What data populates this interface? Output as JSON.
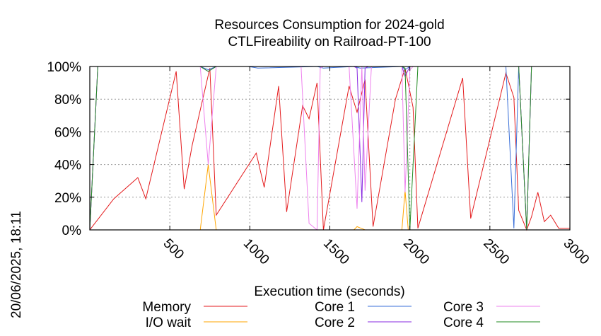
{
  "stamp": "20/06/2025, 18:11",
  "chart_data": {
    "type": "line",
    "title": [
      "Resources Consumption for 2024-gold",
      "CTLFireability on Railroad-PT-100"
    ],
    "xlabel": "Execution time (seconds)",
    "ylabel": "",
    "xlim": [
      0,
      3000
    ],
    "ylim": [
      0,
      100
    ],
    "x_ticks": [
      500,
      1000,
      1500,
      2000,
      2500,
      3000
    ],
    "x_tick_labels": [
      "500",
      "1000",
      "1500",
      "2000",
      "2500",
      "3000"
    ],
    "y_ticks": [
      0,
      20,
      40,
      60,
      80,
      100
    ],
    "y_tick_labels": [
      "0%",
      "20%",
      "40%",
      "60%",
      "80%",
      "100%"
    ],
    "grid": true,
    "legend_position": "bottom",
    "series": [
      {
        "name": "Memory",
        "color": "#e41a1c",
        "points": [
          [
            0,
            0
          ],
          [
            150,
            19
          ],
          [
            300,
            32
          ],
          [
            350,
            19
          ],
          [
            540,
            97
          ],
          [
            590,
            25
          ],
          [
            640,
            52
          ],
          [
            750,
            99
          ],
          [
            790,
            9
          ],
          [
            1040,
            47
          ],
          [
            1090,
            26
          ],
          [
            1180,
            88
          ],
          [
            1230,
            11
          ],
          [
            1330,
            76
          ],
          [
            1370,
            68
          ],
          [
            1420,
            90
          ],
          [
            1460,
            0
          ],
          [
            1620,
            88
          ],
          [
            1670,
            72
          ],
          [
            1720,
            92
          ],
          [
            1770,
            2
          ],
          [
            1910,
            80
          ],
          [
            1970,
            99
          ],
          [
            2020,
            75
          ],
          [
            2050,
            1
          ],
          [
            2330,
            93
          ],
          [
            2380,
            7
          ],
          [
            2600,
            96
          ],
          [
            2650,
            81
          ],
          [
            2680,
            12
          ],
          [
            2730,
            0
          ],
          [
            2760,
            8
          ],
          [
            2800,
            23
          ],
          [
            2840,
            5
          ],
          [
            2880,
            9
          ],
          [
            2930,
            1
          ],
          [
            3000,
            1
          ]
        ]
      },
      {
        "name": "I/O wait",
        "color": "#ffa500",
        "points": [
          [
            690,
            0
          ],
          [
            740,
            40
          ],
          [
            790,
            0
          ],
          [
            1650,
            0
          ],
          [
            1670,
            2
          ],
          [
            1720,
            0
          ],
          [
            1950,
            0
          ],
          [
            1970,
            24
          ],
          [
            1990,
            0
          ]
        ]
      },
      {
        "name": "Core 1",
        "color": "#3a6fd8",
        "points": [
          [
            0,
            0
          ],
          [
            50,
            100
          ],
          [
            690,
            100
          ],
          [
            740,
            98
          ],
          [
            790,
            100
          ],
          [
            990,
            100
          ],
          [
            1050,
            99
          ],
          [
            1420,
            100
          ],
          [
            1460,
            99
          ],
          [
            1650,
            100
          ],
          [
            1690,
            99
          ],
          [
            1950,
            100
          ],
          [
            1970,
            98
          ],
          [
            2000,
            100
          ],
          [
            2600,
            100
          ],
          [
            2650,
            1
          ],
          [
            2680,
            100
          ],
          [
            2730,
            0
          ],
          [
            2760,
            100
          ],
          [
            3000,
            100
          ]
        ]
      },
      {
        "name": "Core 2",
        "color": "#8a2be2",
        "points": [
          [
            0,
            0
          ],
          [
            50,
            100
          ],
          [
            690,
            100
          ],
          [
            740,
            97
          ],
          [
            790,
            100
          ],
          [
            1650,
            100
          ],
          [
            1670,
            99
          ],
          [
            1700,
            17
          ],
          [
            1720,
            99
          ],
          [
            1740,
            100
          ],
          [
            1950,
            100
          ],
          [
            1970,
            94
          ],
          [
            2000,
            100
          ],
          [
            2600,
            100
          ],
          [
            2680,
            100
          ],
          [
            2730,
            0
          ],
          [
            2760,
            100
          ],
          [
            3000,
            100
          ]
        ]
      },
      {
        "name": "Core 3",
        "color": "#ee82ee",
        "points": [
          [
            0,
            0
          ],
          [
            50,
            100
          ],
          [
            690,
            100
          ],
          [
            740,
            40
          ],
          [
            790,
            100
          ],
          [
            1320,
            100
          ],
          [
            1370,
            4
          ],
          [
            1420,
            0
          ],
          [
            1440,
            99
          ],
          [
            1460,
            100
          ],
          [
            1620,
            100
          ],
          [
            1670,
            13
          ],
          [
            1700,
            100
          ],
          [
            1720,
            24
          ],
          [
            1760,
            100
          ],
          [
            1950,
            100
          ],
          [
            1970,
            23
          ],
          [
            2000,
            98
          ],
          [
            2020,
            100
          ],
          [
            2680,
            100
          ],
          [
            2730,
            0
          ],
          [
            2760,
            100
          ],
          [
            3000,
            100
          ]
        ]
      },
      {
        "name": "Core 4",
        "color": "#228b22",
        "points": [
          [
            0,
            0
          ],
          [
            50,
            100
          ],
          [
            690,
            100
          ],
          [
            740,
            97
          ],
          [
            790,
            100
          ],
          [
            1950,
            100
          ],
          [
            1970,
            99
          ],
          [
            2000,
            0
          ],
          [
            2050,
            100
          ],
          [
            2680,
            100
          ],
          [
            2730,
            0
          ],
          [
            2760,
            100
          ],
          [
            3000,
            100
          ]
        ]
      }
    ]
  }
}
